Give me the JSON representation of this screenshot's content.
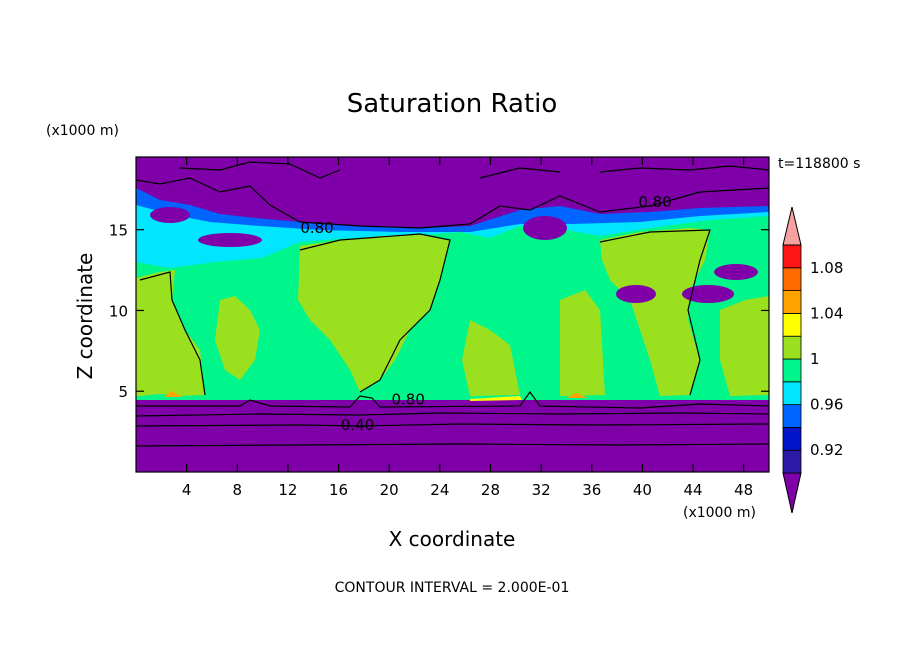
{
  "chart_data": {
    "type": "heatmap",
    "title": "Saturation Ratio",
    "xlabel": "X coordinate",
    "ylabel": "Z coordinate",
    "x_unit": "(x1000 m)",
    "y_unit": "(x1000 m)",
    "time_label": "t=118800 s",
    "footer": "CONTOUR INTERVAL = 2.000E-01",
    "xlim": [
      0,
      50
    ],
    "ylim": [
      0,
      19.5
    ],
    "x_ticks": [
      4,
      8,
      12,
      16,
      20,
      24,
      28,
      32,
      36,
      40,
      44,
      48
    ],
    "y_ticks": [
      5,
      10,
      15
    ],
    "contour_labels": [
      {
        "text": "0.80",
        "x": 14.3,
        "y": 15.1
      },
      {
        "text": "0.80",
        "x": 41.0,
        "y": 16.7
      },
      {
        "text": "0.80",
        "x": 21.5,
        "y": 4.5
      },
      {
        "text": "0.40",
        "x": 17.5,
        "y": 2.9
      }
    ],
    "colorbar": {
      "levels": [
        0.9,
        0.92,
        0.94,
        0.96,
        0.98,
        1.0,
        1.02,
        1.04,
        1.06,
        1.08,
        1.1
      ],
      "colors": [
        "#7f00a8",
        "#2c1aa6",
        "#0016c8",
        "#0064ff",
        "#00e6ff",
        "#00f58a",
        "#9be01f",
        "#ffff00",
        "#ffa200",
        "#ff6a00",
        "#ff1515",
        "#f6a0a0"
      ],
      "labels": [
        {
          "value": 0.92,
          "text": "0.92"
        },
        {
          "value": 0.96,
          "text": "0.96"
        },
        {
          "value": 1.0,
          "text": "1"
        },
        {
          "value": 1.04,
          "text": "1.04"
        },
        {
          "value": 1.08,
          "text": "1.08"
        }
      ]
    }
  }
}
